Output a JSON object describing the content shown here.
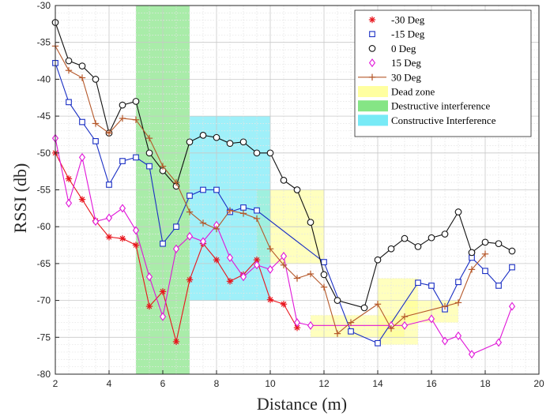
{
  "chart_data": {
    "type": "line",
    "xlabel": "Distance (m)",
    "ylabel": "RSSI (db)",
    "xlim": [
      2,
      20
    ],
    "ylim": [
      -80,
      -30
    ],
    "x_ticks": [
      2,
      4,
      6,
      8,
      10,
      12,
      14,
      16,
      18,
      20
    ],
    "y_ticks": [
      -80,
      -75,
      -70,
      -65,
      -60,
      -55,
      -50,
      -45,
      -40,
      -35,
      -30
    ],
    "grid": "major and minor, dotted",
    "legend_position": "top-right",
    "series": [
      {
        "name": "-30 Deg",
        "color": "#e8141c",
        "marker": "asterisk",
        "x": [
          2,
          2.5,
          3,
          3.5,
          4,
          4.5,
          5,
          5.5,
          6,
          6.5,
          7,
          7.5,
          8,
          8.5,
          9,
          9.5,
          10,
          10.5,
          11
        ],
        "y": [
          -50,
          -53.5,
          -56.3,
          -59.2,
          -61.4,
          -61.6,
          -62.5,
          -70.8,
          -68.8,
          -75.6,
          -67.2,
          -62.3,
          -64.5,
          -67.4,
          -66.5,
          -64.5,
          -69.9,
          -70.5,
          -73.7
        ]
      },
      {
        "name": "-15 Deg",
        "color": "#1a2fc4",
        "marker": "square",
        "x": [
          2,
          2.5,
          3,
          3.5,
          4,
          4.5,
          5,
          5.5,
          6,
          6.5,
          7,
          7.5,
          8,
          8.5,
          9,
          9.5,
          12,
          13,
          14,
          15.5,
          16,
          16.5,
          17,
          17.5,
          18,
          18.5,
          19
        ],
        "y": [
          -37.8,
          -43.1,
          -45.8,
          -48.4,
          -54.3,
          -51.1,
          -50.6,
          -51.8,
          -62.3,
          -60.0,
          -55.8,
          -55.0,
          -55.0,
          -58.0,
          -57.4,
          -57.8,
          -64.8,
          -74.2,
          -75.8,
          -67.6,
          -68.0,
          -71.2,
          -67.5,
          -64.2,
          -66.0,
          -68.0,
          -65.5
        ]
      },
      {
        "name": "0 Deg",
        "color": "#111111",
        "marker": "circle",
        "x": [
          2,
          2.5,
          3,
          3.5,
          4,
          4.5,
          5,
          5.5,
          6,
          6.5,
          7,
          7.5,
          8,
          8.5,
          9,
          9.5,
          10,
          10.5,
          11,
          11.5,
          12,
          12.5,
          13.5,
          14,
          14.5,
          15,
          15.5,
          16,
          16.5,
          17,
          17.5,
          18,
          18.5,
          19
        ],
        "y": [
          -32.3,
          -37.5,
          -38.2,
          -40.0,
          -47.3,
          -43.5,
          -43.0,
          -50.0,
          -52.4,
          -54.5,
          -48.5,
          -47.6,
          -47.9,
          -48.7,
          -48.5,
          -50.0,
          -50.0,
          -53.7,
          -55.0,
          -59.4,
          -66.5,
          -70.0,
          -71.0,
          -64.5,
          -63.0,
          -61.6,
          -62.7,
          -61.5,
          -61.0,
          -58.0,
          -63.5,
          -62.1,
          -62.3,
          -63.3
        ]
      },
      {
        "name": "15 Deg",
        "color": "#e015d8",
        "marker": "diamond",
        "x": [
          2,
          2.5,
          3,
          3.5,
          4,
          4.5,
          5,
          5.5,
          6,
          6.5,
          7,
          7.5,
          8,
          8.5,
          9,
          9.5,
          10,
          10.5,
          11,
          11.5,
          14.5,
          15,
          16,
          16.5,
          17,
          17.5,
          18.5,
          19
        ],
        "y": [
          -48.0,
          -56.8,
          -50.6,
          -59.3,
          -58.8,
          -57.5,
          -60.5,
          -66.8,
          -72.2,
          -63.0,
          -61.3,
          -62.0,
          -59.8,
          -64.2,
          -66.8,
          -65.2,
          -65.8,
          -64.0,
          -73.0,
          -73.4,
          -73.4,
          -73.4,
          -72.5,
          -75.5,
          -74.8,
          -77.3,
          -75.7,
          -70.8
        ]
      },
      {
        "name": "30 Deg",
        "color": "#b5582a",
        "marker": "plus",
        "x": [
          2,
          2.5,
          3,
          3.5,
          4,
          4.5,
          5,
          5.5,
          6,
          6.5,
          7,
          7.5,
          8,
          8.5,
          9,
          9.5,
          10,
          10.5,
          11,
          11.5,
          12,
          12.5,
          13,
          14,
          14.5,
          15,
          16.5,
          17,
          17.5,
          18
        ],
        "y": [
          -35.5,
          -38.8,
          -39.8,
          -46.0,
          -47.3,
          -45.3,
          -45.5,
          -48.0,
          -51.8,
          -54.0,
          -58.0,
          -59.5,
          -60.3,
          -57.8,
          -58.2,
          -58.9,
          -63.0,
          -65.2,
          -67.0,
          -66.4,
          -68.2,
          -74.5,
          -73.0,
          -70.5,
          -73.8,
          -72.2,
          -70.8,
          -70.3,
          -65.8,
          -63.7
        ]
      }
    ],
    "regions": [
      {
        "legend": "Dead zone",
        "color": "#ffff88",
        "opacity": 0.55,
        "x": [
          9.5,
          12
        ],
        "y": [
          -65,
          -55
        ]
      },
      {
        "color": "#ffff88",
        "opacity": 0.55,
        "x": [
          11.5,
          15
        ],
        "y": [
          -75,
          -72
        ]
      },
      {
        "color": "#ffff88",
        "opacity": 0.55,
        "x": [
          14,
          15.5
        ],
        "y": [
          -76,
          -67
        ]
      },
      {
        "color": "#ffff88",
        "opacity": 0.55,
        "x": [
          15,
          17
        ],
        "y": [
          -73,
          -70
        ]
      },
      {
        "legend": "Destructive interference",
        "color": "#70e070",
        "opacity": 0.6,
        "x": [
          5,
          7
        ],
        "y": [
          -80,
          -30
        ]
      },
      {
        "legend": "Constructive Interference",
        "color": "#5fe6f5",
        "opacity": 0.6,
        "x": [
          7,
          10
        ],
        "y": [
          -70,
          -45
        ]
      }
    ],
    "legend_entries": [
      "-30 Deg",
      "-15 Deg",
      "0 Deg",
      "15 Deg",
      "30 Deg",
      "Dead zone",
      "Destructive interference",
      "Constructive Interference"
    ]
  }
}
